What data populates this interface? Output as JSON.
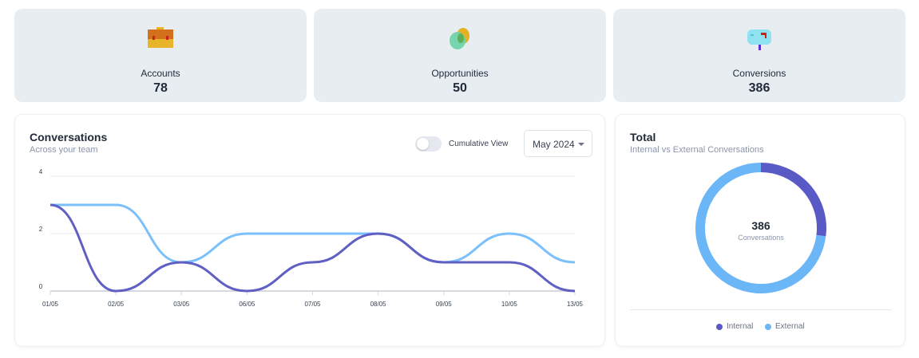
{
  "stats": [
    {
      "label": "Accounts",
      "value": "78",
      "icon": "briefcase-icon"
    },
    {
      "label": "Opportunities",
      "value": "50",
      "icon": "chat-bubbles-icon"
    },
    {
      "label": "Conversions",
      "value": "386",
      "icon": "mailbox-icon"
    }
  ],
  "conversations": {
    "title": "Conversations",
    "subtitle": "Across your team",
    "toggle_label": "Cumulative View",
    "toggle_on": false,
    "period": "May 2024"
  },
  "chart_data": {
    "type": "line",
    "categories": [
      "01/05",
      "02/05",
      "03/05",
      "06/05",
      "07/05",
      "08/05",
      "09/05",
      "10/05",
      "13/05"
    ],
    "yticks": [
      "0",
      "2",
      "4"
    ],
    "ylim": [
      0,
      4
    ],
    "series": [
      {
        "name": "External",
        "color": "#7cc0fb",
        "values": [
          3,
          3,
          1,
          2,
          2,
          2,
          1,
          2,
          1
        ]
      },
      {
        "name": "Internal",
        "color": "#5f5fc4",
        "values": [
          3,
          0,
          1,
          0,
          1,
          2,
          1,
          1,
          0
        ]
      }
    ]
  },
  "total": {
    "title": "Total",
    "subtitle": "Internal vs External Conversations",
    "value": "386",
    "value_label": "Conversations",
    "internal_fraction": 0.27,
    "legend": [
      {
        "label": "Internal",
        "color": "#5a5ac6"
      },
      {
        "label": "External",
        "color": "#6bb6f7"
      }
    ]
  }
}
